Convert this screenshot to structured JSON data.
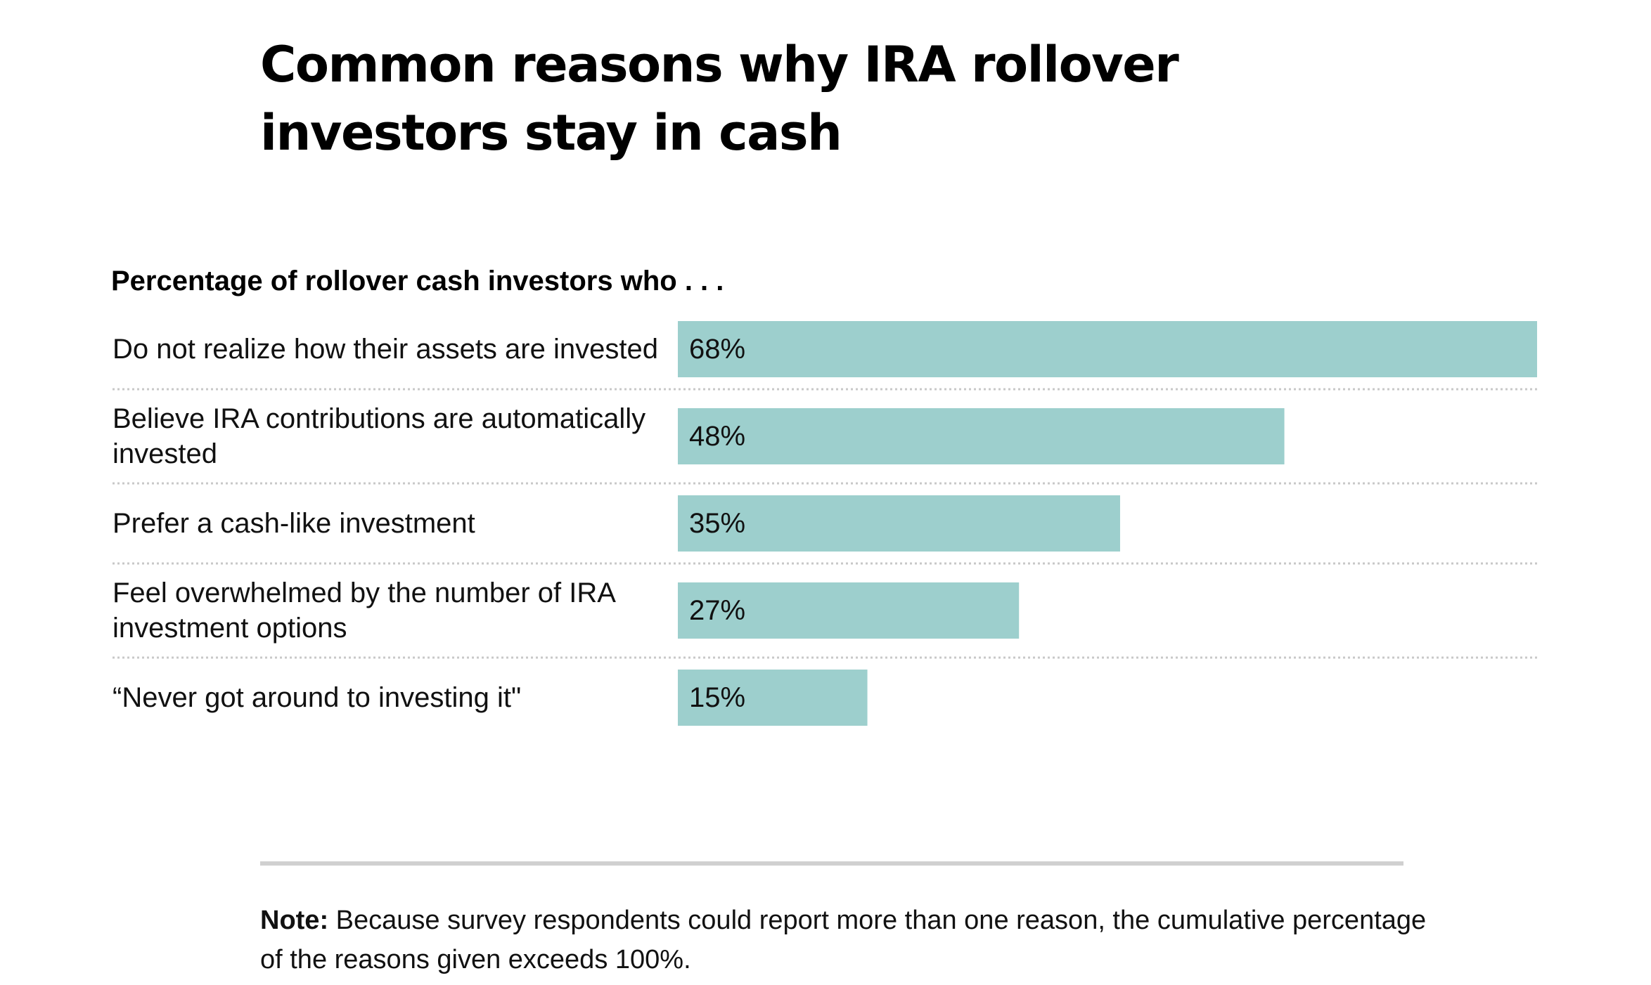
{
  "title": "Common reasons why IRA rollover investors stay in cash",
  "subtitle": "Percentage of rollover cash investors who . . .",
  "note": {
    "label": "Note:",
    "text": "Because survey respondents could report more than one reason, the cumulative percentage of the reasons given exceeds 100%."
  },
  "colors": {
    "bar": "#9dcfcd",
    "divider": "#c8c8c8",
    "rule": "#d0d0d0"
  },
  "chart_data": {
    "type": "bar",
    "orientation": "horizontal",
    "title": "Common reasons why IRA rollover investors stay in cash",
    "subtitle": "Percentage of rollover cash investors who . . .",
    "categories": [
      [
        "Do not realize how their assets are invested"
      ],
      [
        "Believe IRA contributions are automatically",
        "invested"
      ],
      [
        "Prefer a cash-like investment"
      ],
      [
        "Feel overwhelmed by the number of IRA",
        "investment options"
      ],
      [
        "“Never got around to investing it\""
      ]
    ],
    "values": [
      68,
      48,
      35,
      27,
      15
    ],
    "value_labels": [
      "68%",
      "48%",
      "35%",
      "27%",
      "15%"
    ],
    "unit": "%",
    "xlim": [
      0,
      68
    ],
    "grid": false,
    "legend": "none"
  }
}
